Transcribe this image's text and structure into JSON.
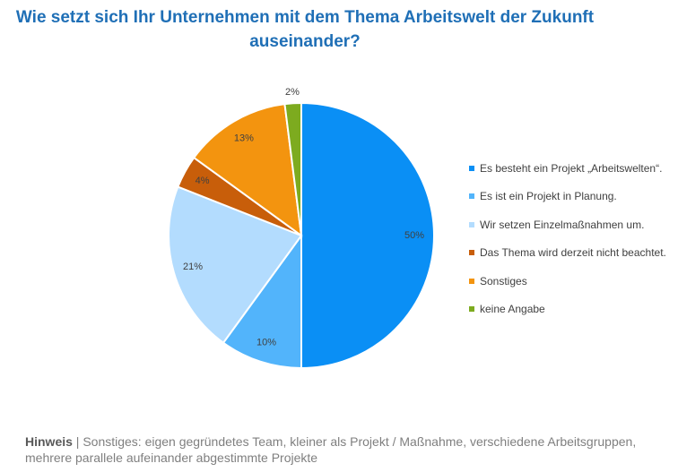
{
  "chart_data": {
    "type": "pie",
    "title": "Wie setzt sich Ihr Unternehmen mit dem Thema Arbeitswelt der Zukunft auseinander?",
    "categories": [
      "Es besteht ein Projekt „Arbeitswelten“.",
      "Es ist ein Projekt in Planung.",
      "Wir setzen Einzelmaßnahmen um.",
      "Das Thema wird derzeit nicht beachtet.",
      "Sonstiges",
      "keine Angabe"
    ],
    "values": [
      50,
      10,
      21,
      4,
      13,
      2
    ],
    "data_labels": [
      "50%",
      "10%",
      "21%",
      "4%",
      "13%",
      "2%"
    ],
    "colors": [
      "#0a8ff5",
      "#52b4fb",
      "#b3dcfe",
      "#c85e0a",
      "#f3940f",
      "#7dab1f"
    ],
    "legend_position": "right"
  },
  "note": {
    "label": "Hinweis",
    "separator": " | ",
    "text": "Sonstiges: eigen gegründetes Team, kleiner als Projekt / Maßnahme, verschiedene Arbeitsgruppen, mehrere parallele aufeinander abgestimmte Projekte"
  }
}
